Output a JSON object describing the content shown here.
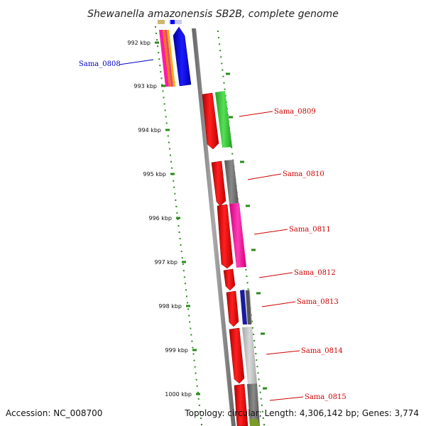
{
  "title": "Shewanella amazonensis SB2B, complete genome",
  "footer": {
    "accession": "Accession: NC_008700",
    "topology": "Topology: circular; Length: 4,306,142 bp; Genes: 3,774"
  },
  "ticks": [
    "992 kbp",
    "993 kbp",
    "994 kbp",
    "995 kbp",
    "996 kbp",
    "997 kbp",
    "998 kbp",
    "999 kbp",
    "1000 kbp"
  ],
  "genes": [
    {
      "name": "Sama_0808",
      "color": "#0000cc"
    },
    {
      "name": "Sama_0809",
      "color": "#cc0000"
    },
    {
      "name": "Sama_0810",
      "color": "#cc0000"
    },
    {
      "name": "Sama_0811",
      "color": "#cc0000"
    },
    {
      "name": "Sama_0812",
      "color": "#cc0000"
    },
    {
      "name": "Sama_0813",
      "color": "#cc0000"
    },
    {
      "name": "Sama_0814",
      "color": "#cc0000"
    },
    {
      "name": "Sama_0815",
      "color": "#cc0000"
    }
  ],
  "colors": {
    "backbone": "#888888",
    "dots": "#2a8a1a",
    "gene_red": "#ff0000",
    "gene_blue": "#0000ff",
    "gene_green": "#33cc33",
    "gene_gray": "#777777",
    "gene_magenta": "#ff1aa8",
    "gene_navy": "#1a1aa0",
    "gene_lightgray": "#c8c8c8",
    "gene_olive": "#7a9a2a"
  }
}
